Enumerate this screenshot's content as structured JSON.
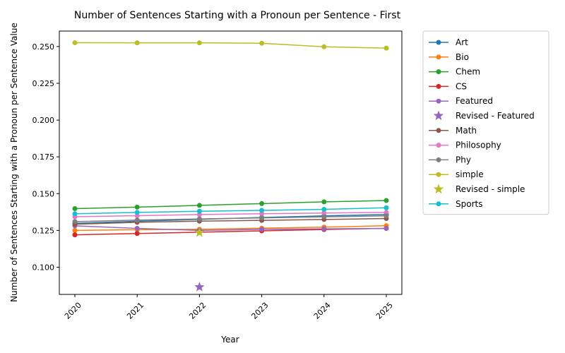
{
  "chart_data": {
    "type": "line",
    "title": "Number of Sentences Starting with a Pronoun per Sentence - First",
    "xlabel": "Year",
    "ylabel": "Number of Sentences Starting with a Pronoun per Sentence Value",
    "x": [
      "2020",
      "2021",
      "2022",
      "2023",
      "2024",
      "2025"
    ],
    "yticks": [
      "0.100",
      "0.125",
      "0.150",
      "0.175",
      "0.200",
      "0.225",
      "0.250"
    ],
    "ylim": [
      0.0815,
      0.2605
    ],
    "grid": false,
    "legend_position": "outside-right",
    "series": [
      {
        "name": "Art",
        "color": "#1f77b4",
        "values": [
          0.1298,
          0.1312,
          0.1325,
          0.1338,
          0.1349,
          0.1358
        ]
      },
      {
        "name": "Bio",
        "color": "#ff7f0e",
        "values": [
          0.125,
          0.1255,
          0.1258,
          0.1265,
          0.1272,
          0.1282
        ]
      },
      {
        "name": "Chem",
        "color": "#2ca02c",
        "values": [
          0.1398,
          0.1408,
          0.142,
          0.1432,
          0.1444,
          0.1453
        ]
      },
      {
        "name": "CS",
        "color": "#d62728",
        "values": [
          0.122,
          0.1229,
          0.1238,
          0.1247,
          0.1256,
          0.1264
        ]
      },
      {
        "name": "Featured",
        "color": "#9467bd",
        "values": [
          0.1281,
          0.1264,
          0.125,
          0.1257,
          0.1261,
          0.1263
        ]
      },
      {
        "name": "Revised - Featured",
        "color": "#9467bd",
        "marker": "star",
        "points": [
          {
            "x": "2022",
            "y": 0.0865
          }
        ]
      },
      {
        "name": "Math",
        "color": "#8c564b",
        "values": [
          0.1292,
          0.1305,
          0.1313,
          0.1318,
          0.1324,
          0.1331
        ]
      },
      {
        "name": "Philosophy",
        "color": "#e377c2",
        "values": [
          0.1343,
          0.135,
          0.1358,
          0.1363,
          0.1368,
          0.1372
        ]
      },
      {
        "name": "Phy",
        "color": "#7f7f7f",
        "values": [
          0.131,
          0.132,
          0.1328,
          0.1335,
          0.1342,
          0.1349
        ]
      },
      {
        "name": "simple",
        "color": "#bcbd22",
        "values": [
          0.2526,
          0.2525,
          0.2525,
          0.2522,
          0.2498,
          0.2489
        ]
      },
      {
        "name": "Revised - simple",
        "color": "#bcbd22",
        "marker": "star",
        "points": [
          {
            "x": "2022",
            "y": 0.1235
          }
        ]
      },
      {
        "name": "Sports",
        "color": "#17becf",
        "values": [
          0.1363,
          0.1372,
          0.138,
          0.1386,
          0.1393,
          0.1404
        ]
      }
    ]
  }
}
